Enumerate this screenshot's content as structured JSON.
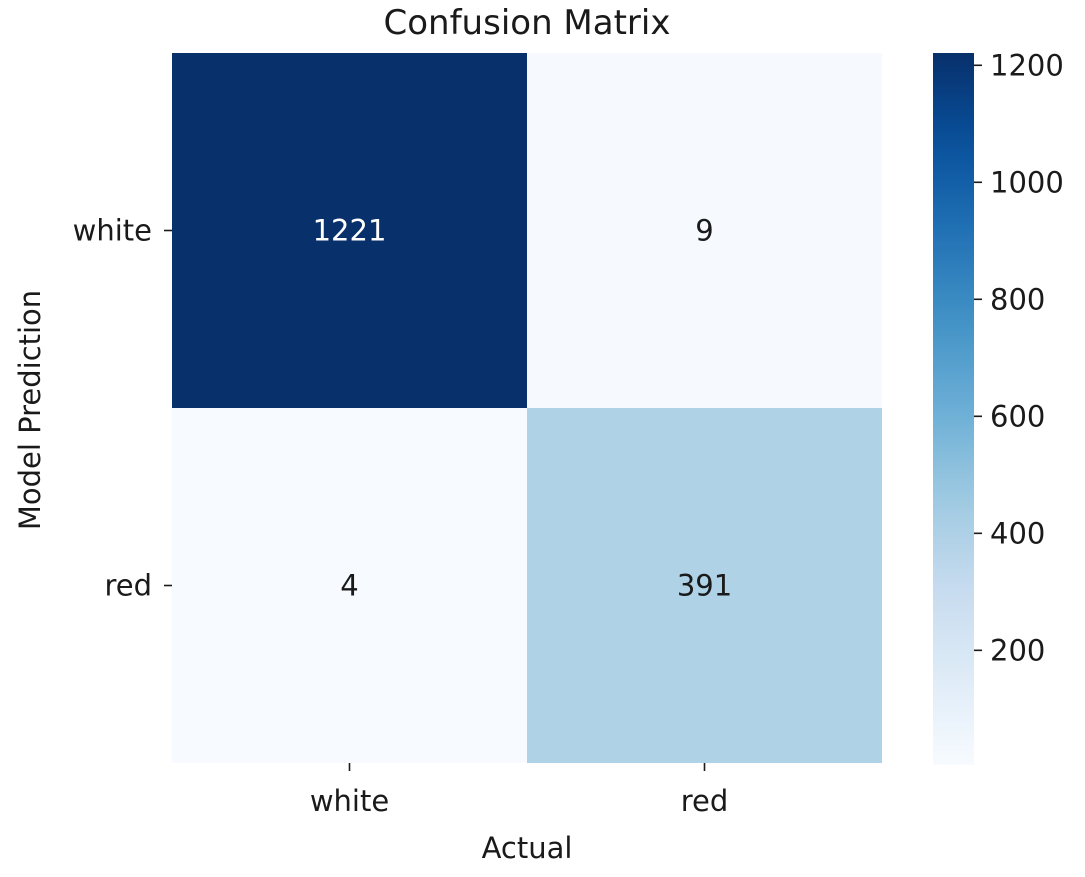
{
  "chart_data": {
    "type": "heatmap",
    "title": "Confusion Matrix",
    "xlabel": "Actual",
    "ylabel": "Model Prediction",
    "x_categories": [
      "white",
      "red"
    ],
    "y_categories": [
      "white",
      "red"
    ],
    "values": [
      [
        1221,
        9
      ],
      [
        4,
        391
      ]
    ],
    "colormap": "Blues",
    "colorbar": {
      "range": [
        4,
        1221
      ],
      "ticks": [
        200,
        400,
        600,
        800,
        1000,
        1200
      ],
      "tick_labels": [
        "200",
        "400",
        "600",
        "800",
        "1000",
        "1200"
      ]
    },
    "grid": false,
    "annotated": true
  }
}
